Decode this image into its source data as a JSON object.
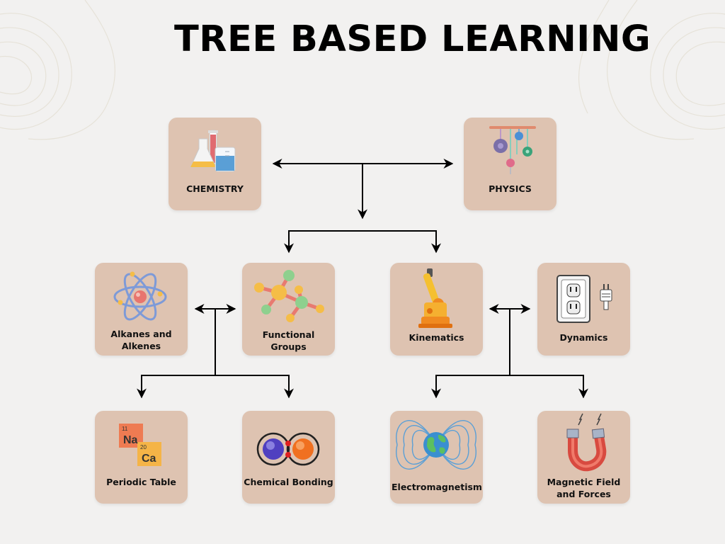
{
  "title": "TREE BASED LEARNING",
  "colors": {
    "background": "#f2f1f0",
    "card": "#dec3b1",
    "connector": "#000000"
  },
  "nodes": {
    "chemistry": {
      "label": "CHEMISTRY",
      "icon": "lab-flasks-icon"
    },
    "physics": {
      "label": "PHYSICS",
      "icon": "pendulum-mobile-icon"
    },
    "alkanes": {
      "label": "Alkanes and Alkenes",
      "icon": "atom-icon"
    },
    "functional": {
      "label": "Functional Groups",
      "icon": "molecule-icon"
    },
    "kinematics": {
      "label": "Kinematics",
      "icon": "robotic-arm-icon"
    },
    "dynamics": {
      "label": "Dynamics",
      "icon": "power-outlet-icon"
    },
    "periodic": {
      "label": "Periodic Table",
      "icon": "periodic-elements-icon",
      "elements": [
        {
          "number": "11",
          "symbol": "Na"
        },
        {
          "number": "20",
          "symbol": "Ca"
        }
      ]
    },
    "bonding": {
      "label": "Chemical Bonding",
      "icon": "bonded-atoms-icon"
    },
    "electromagnetism": {
      "label": "Electromagnetism",
      "icon": "earth-field-lines-icon"
    },
    "magnetic": {
      "label": "Magnetic Field and Forces",
      "icon": "horseshoe-magnet-icon"
    }
  }
}
